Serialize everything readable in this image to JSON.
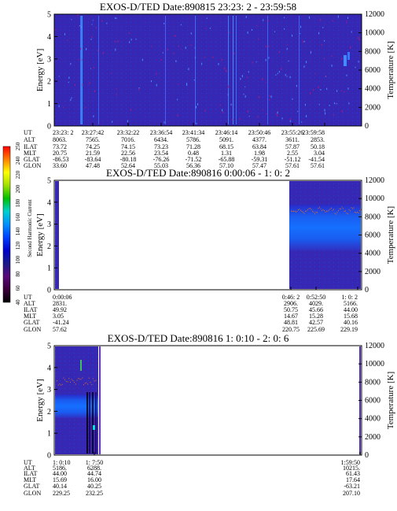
{
  "colorbar": {
    "label": "Second Harmonic Current",
    "ticks": [
      "40",
      "60",
      "80",
      "100",
      "120",
      "140",
      "160",
      "180",
      "200",
      "220",
      "240",
      "250"
    ],
    "colors": [
      "#000000",
      "#3a003a",
      "#5a0a7a",
      "#1a1a8c",
      "#0000cc",
      "#0040ff",
      "#0090ff",
      "#00d0d0",
      "#00c000",
      "#a0e000",
      "#ffff00",
      "#ff8000",
      "#ff0000"
    ]
  },
  "chart_data": [
    {
      "type": "heatmap",
      "title": "EXOS-D/TED   Date:890815  23:23: 2 - 23:59:58",
      "ylabel": "Energy [eV]",
      "y2label": "Temperature [K]",
      "yticks": [
        "0",
        "1",
        "2",
        "3",
        "4",
        "5"
      ],
      "y2ticks": [
        "0",
        "2000",
        "4000",
        "6000",
        "8000",
        "10000",
        "12000"
      ],
      "ylim": [
        0,
        5
      ],
      "y2lim": [
        0,
        12000
      ],
      "ephemeris_labels": [
        "UT",
        "ALT",
        "ILAT",
        "MLT",
        "GLAT",
        "GLON"
      ],
      "ephemeris": [
        [
          "23:23: 2",
          "8063.",
          "73.72",
          "20.75",
          "-86.53",
          "33.60"
        ],
        [
          "23:27:42",
          "7565.",
          "74.25",
          "21.59",
          "-83.64",
          "47.48"
        ],
        [
          "23:32:22",
          "7016.",
          "74.15",
          "22.56",
          "-80.18",
          "52.64"
        ],
        [
          "23:36:54",
          "6434.",
          "73.23",
          "23.54",
          "-76.26",
          "55.03"
        ],
        [
          "23:41:34",
          "5786.",
          "71.28",
          "0.48",
          "-71.52",
          "56.36"
        ],
        [
          "23:46:14",
          "5091.",
          "68.15",
          "1.31",
          "-65.88",
          "57.10"
        ],
        [
          "23:50:46",
          "4377.",
          "63.84",
          "1.98",
          "-59.31",
          "57.47"
        ],
        [
          "23:55:26",
          "3611.",
          "57.87",
          "2.55",
          "-51.12",
          "57.61"
        ],
        [
          "23:59:58",
          "2853.",
          "50.18",
          "3.04",
          "-41.54",
          "57.61"
        ]
      ]
    },
    {
      "type": "heatmap",
      "title": "EXOS-D/TED   Date:890816  0:00:06 - 1: 0: 2",
      "ylabel": "Energy [eV]",
      "y2label": "Temperature [K]",
      "yticks": [
        "0",
        "1",
        "2",
        "3",
        "4",
        "5"
      ],
      "y2ticks": [
        "0",
        "2000",
        "4000",
        "6000",
        "8000",
        "10000",
        "12000"
      ],
      "ylim": [
        0,
        5
      ],
      "y2lim": [
        0,
        12000
      ],
      "ephemeris_labels": [
        "UT",
        "ALT",
        "ILAT",
        "MLT",
        "GLAT",
        "GLON"
      ],
      "ephemeris": [
        [
          "0:00:06",
          "2831.",
          "49.92",
          "3.05",
          "-41.24",
          "57.62"
        ],
        [
          "0:46: 2",
          "2906.",
          "50.75",
          "14.67",
          "48.81",
          "220.75"
        ],
        [
          "0:52:50",
          "4029.",
          "45.66",
          "15.28",
          "42.57",
          "225.69"
        ],
        [
          "1: 0: 2",
          "5166.",
          "44.00",
          "15.68",
          "40.16",
          "229.19"
        ]
      ]
    },
    {
      "type": "heatmap",
      "title": "EXOS-D/TED   Date:890816  1: 0:10 - 2: 0: 6",
      "ylabel": "Energy [eV]",
      "y2label": "Temperature [K]",
      "yticks": [
        "0",
        "1",
        "2",
        "3",
        "4",
        "5"
      ],
      "y2ticks": [
        "0",
        "2000",
        "4000",
        "6000",
        "8000",
        "10000",
        "12000"
      ],
      "ylim": [
        0,
        5
      ],
      "y2lim": [
        0,
        12000
      ],
      "ephemeris_labels": [
        "UT",
        "ALT",
        "ILAT",
        "MLT",
        "GLAT",
        "GLON"
      ],
      "ephemeris": [
        [
          "1: 0:10",
          "5186.",
          "44.00",
          "15.69",
          "40.14",
          "229.25"
        ],
        [
          "1: 7:50",
          "6288.",
          "44.74",
          "16.00",
          "40.25",
          "232.25"
        ],
        [
          "1:59:50",
          "10215.",
          "61.43",
          "17.64",
          "-63.21",
          "207.10"
        ]
      ]
    }
  ]
}
